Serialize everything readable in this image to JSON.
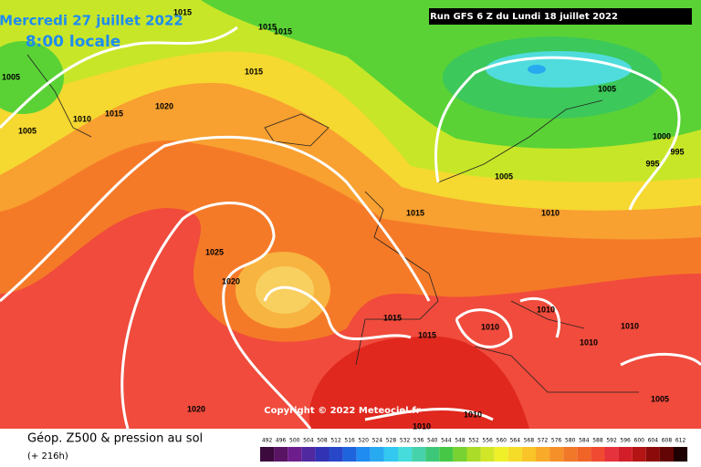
{
  "header": {
    "date": "Mercredi 27 juillet 2022",
    "time": "8:00 locale",
    "run": "Run GFS 6 Z du Lundi 18 juillet 2022"
  },
  "isobar_labels": [
    "1015",
    "1015",
    "1015",
    "1005",
    "1015",
    "1020",
    "1015",
    "1010",
    "1005",
    "1005",
    "1000",
    "995",
    "995",
    "1005",
    "1015",
    "1010",
    "1025",
    "1020",
    "1015",
    "1010",
    "1010",
    "1010",
    "1015",
    "1010",
    "1005",
    "1020",
    "1010",
    "1010"
  ],
  "copyright": "Copyright © 2022 Meteociel.fr",
  "footer": {
    "title": "Géop. Z500 & pression au sol",
    "lead": "(+ 216h)"
  },
  "colorbar": {
    "labels": [
      "492",
      "496",
      "500",
      "504",
      "508",
      "512",
      "516",
      "520",
      "524",
      "528",
      "532",
      "536",
      "540",
      "544",
      "548",
      "552",
      "556",
      "560",
      "564",
      "568",
      "572",
      "576",
      "580",
      "584",
      "588",
      "592",
      "596",
      "600",
      "604",
      "608",
      "612"
    ],
    "colors": [
      "#3c0a3c",
      "#5a1464",
      "#6e1e8c",
      "#5028a0",
      "#3232b4",
      "#2846c8",
      "#1e64dc",
      "#1e8cf0",
      "#28aaf0",
      "#32c8f0",
      "#46dcdc",
      "#46d2aa",
      "#3cc878",
      "#46c846",
      "#78d232",
      "#aadc28",
      "#d2e628",
      "#f0f028",
      "#f5dc28",
      "#f8c428",
      "#f8aa28",
      "#f59028",
      "#f07828",
      "#f06428",
      "#f04b32",
      "#e6323c",
      "#d21e28",
      "#b41414",
      "#8c0a0a",
      "#640505",
      "#1e0000"
    ]
  }
}
